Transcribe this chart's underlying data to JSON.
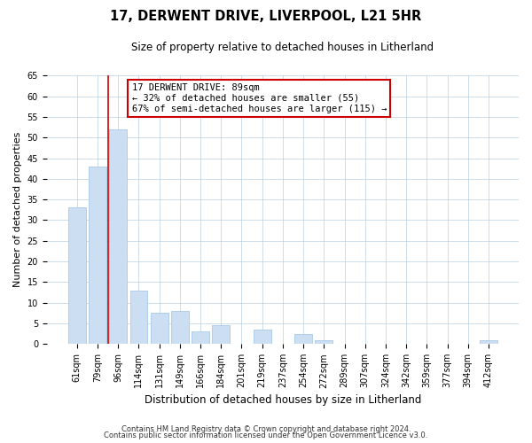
{
  "title": "17, DERWENT DRIVE, LIVERPOOL, L21 5HR",
  "subtitle": "Size of property relative to detached houses in Litherland",
  "xlabel": "Distribution of detached houses by size in Litherland",
  "ylabel": "Number of detached properties",
  "bar_labels": [
    "61sqm",
    "79sqm",
    "96sqm",
    "114sqm",
    "131sqm",
    "149sqm",
    "166sqm",
    "184sqm",
    "201sqm",
    "219sqm",
    "237sqm",
    "254sqm",
    "272sqm",
    "289sqm",
    "307sqm",
    "324sqm",
    "342sqm",
    "359sqm",
    "377sqm",
    "394sqm",
    "412sqm"
  ],
  "bar_heights": [
    33,
    43,
    52,
    13,
    7.5,
    8,
    3,
    4.5,
    0,
    3.5,
    0,
    2.5,
    1,
    0,
    0,
    0,
    0,
    0,
    0,
    0,
    1
  ],
  "bar_color": "#ccdff2",
  "bar_edge_color": "#a8c8e8",
  "vline_x_index": 1.5,
  "vline_color": "#cc0000",
  "annotation_title": "17 DERWENT DRIVE: 89sqm",
  "annotation_line1": "← 32% of detached houses are smaller (55)",
  "annotation_line2": "67% of semi-detached houses are larger (115) →",
  "annotation_box_color": "white",
  "annotation_box_edge_color": "#cc0000",
  "ylim": [
    0,
    65
  ],
  "yticks": [
    0,
    5,
    10,
    15,
    20,
    25,
    30,
    35,
    40,
    45,
    50,
    55,
    60,
    65
  ],
  "footnote1": "Contains HM Land Registry data © Crown copyright and database right 2024.",
  "footnote2": "Contains public sector information licensed under the Open Government Licence v3.0.",
  "title_fontsize": 10.5,
  "subtitle_fontsize": 8.5,
  "ylabel_fontsize": 8,
  "xlabel_fontsize": 8.5,
  "tick_fontsize": 7,
  "annot_fontsize": 7.5,
  "footnote_fontsize": 6
}
